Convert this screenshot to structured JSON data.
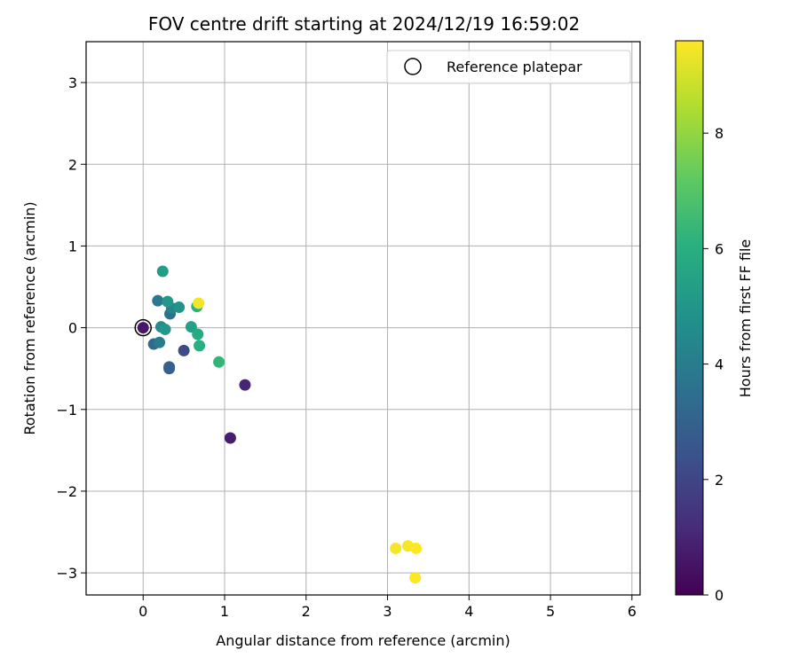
{
  "chart_data": {
    "type": "scatter",
    "title": "FOV centre drift starting at 2024/12/19 16:59:02",
    "xlabel": "Angular distance from reference (arcmin)",
    "ylabel": "Rotation from reference (arcmin)",
    "xlim": [
      -0.7,
      6.1
    ],
    "ylim": [
      -3.27,
      3.5
    ],
    "xticks": [
      0,
      1,
      2,
      3,
      4,
      5,
      6
    ],
    "yticks": [
      -3,
      -2,
      -1,
      0,
      1,
      2,
      3
    ],
    "grid": true,
    "legend": {
      "location": "top-right",
      "entries": [
        "Reference platepar"
      ]
    },
    "reference_point": {
      "x": 0,
      "y": 0
    },
    "colorbar": {
      "label": "Hours from first FF file",
      "range": [
        0,
        9.6
      ],
      "ticks": [
        0,
        2,
        4,
        6,
        8
      ],
      "colormap": "viridis"
    },
    "points": [
      {
        "x": 0.0,
        "y": 0.0,
        "hours": 0.6
      },
      {
        "x": 1.07,
        "y": -1.35,
        "hours": 0.8
      },
      {
        "x": 1.25,
        "y": -0.7,
        "hours": 1.0
      },
      {
        "x": 0.5,
        "y": -0.28,
        "hours": 2.2
      },
      {
        "x": 0.32,
        "y": -0.5,
        "hours": 2.6
      },
      {
        "x": 0.32,
        "y": -0.48,
        "hours": 3.0
      },
      {
        "x": 0.13,
        "y": -0.2,
        "hours": 3.3
      },
      {
        "x": 0.33,
        "y": 0.17,
        "hours": 3.5
      },
      {
        "x": 0.18,
        "y": 0.33,
        "hours": 3.8
      },
      {
        "x": 0.2,
        "y": -0.18,
        "hours": 4.0
      },
      {
        "x": 0.35,
        "y": 0.24,
        "hours": 4.3
      },
      {
        "x": 0.22,
        "y": 0.01,
        "hours": 4.6
      },
      {
        "x": 0.44,
        "y": 0.25,
        "hours": 4.9
      },
      {
        "x": 0.27,
        "y": -0.02,
        "hours": 5.0
      },
      {
        "x": 0.3,
        "y": 0.32,
        "hours": 5.1
      },
      {
        "x": 0.24,
        "y": 0.69,
        "hours": 5.3
      },
      {
        "x": 0.59,
        "y": 0.01,
        "hours": 5.5
      },
      {
        "x": 0.67,
        "y": -0.08,
        "hours": 5.8
      },
      {
        "x": 0.69,
        "y": -0.22,
        "hours": 6.0
      },
      {
        "x": 0.66,
        "y": 0.26,
        "hours": 6.1
      },
      {
        "x": 0.93,
        "y": -0.42,
        "hours": 6.3
      },
      {
        "x": 0.68,
        "y": 0.3,
        "hours": 9.4
      },
      {
        "x": 3.1,
        "y": -2.7,
        "hours": 9.5
      },
      {
        "x": 3.25,
        "y": -2.67,
        "hours": 9.5
      },
      {
        "x": 3.35,
        "y": -2.7,
        "hours": 9.6
      },
      {
        "x": 3.34,
        "y": -3.06,
        "hours": 9.6
      }
    ]
  }
}
